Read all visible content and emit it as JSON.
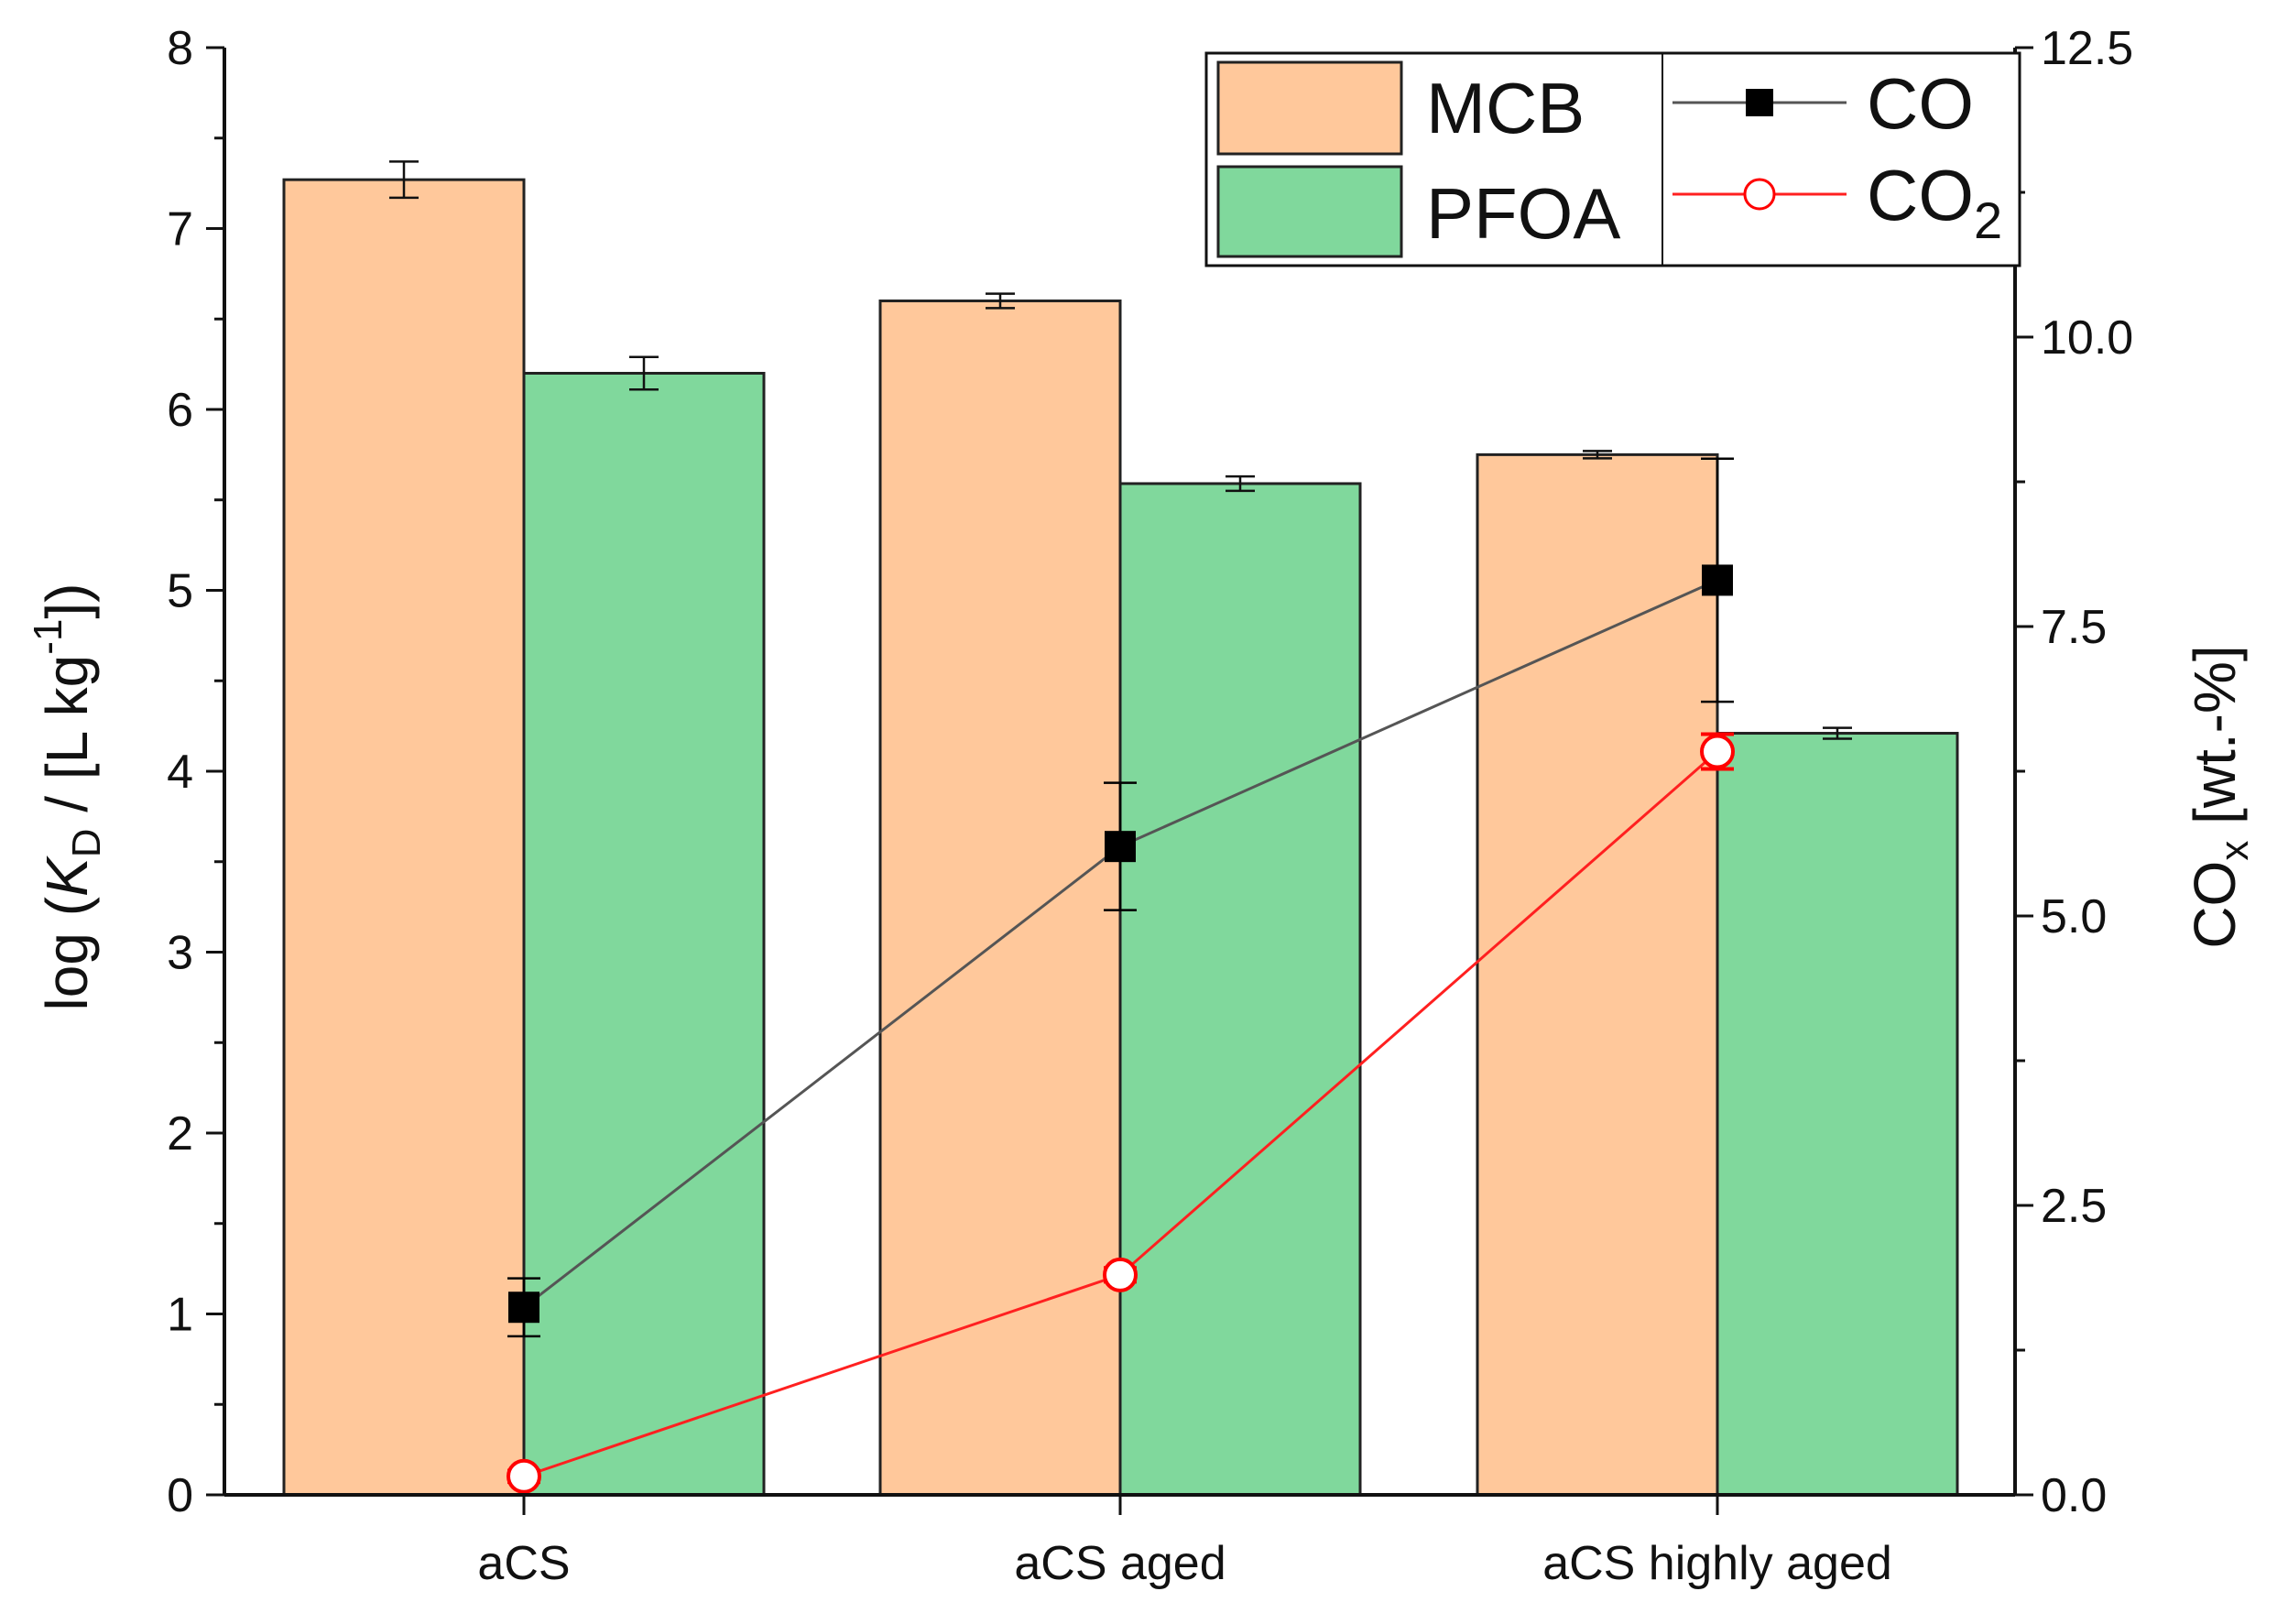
{
  "chart_data": {
    "type": "bar",
    "title": "",
    "categories": [
      "aCS",
      "aCS aged",
      "aCS highly aged"
    ],
    "ylabel": "log (K_D / [L kg^-1])",
    "ylabel_parts": {
      "prefix": "log (",
      "italic": "K",
      "sub": "D",
      "middle": " / [L kg",
      "sup": "-1",
      "suffix": "])"
    },
    "y2label": "CO_x [wt.-%]",
    "y2label_parts": {
      "main": "CO",
      "sub": "x",
      "suffix": " [wt.-%]"
    },
    "ylim": [
      0,
      8
    ],
    "y2lim": [
      0,
      12.5
    ],
    "yticks": [
      "0",
      "1",
      "2",
      "3",
      "4",
      "5",
      "6",
      "7",
      "8"
    ],
    "y2ticks": [
      "0.0",
      "2.5",
      "5.0",
      "7.5",
      "10.0",
      "12.5"
    ],
    "bar_series": [
      {
        "name": "MCB",
        "color": "#FFC89B",
        "values": [
          7.27,
          6.6,
          5.75
        ],
        "errors": [
          0.1,
          0.04,
          0.02
        ]
      },
      {
        "name": "PFOA",
        "color": "#80D89C",
        "values": [
          6.2,
          5.59,
          4.21
        ],
        "errors": [
          0.09,
          0.04,
          0.03
        ]
      }
    ],
    "line_series": [
      {
        "name": "CO",
        "color": "#000000",
        "line_color": "#555555",
        "marker": "square-filled",
        "axis": "right",
        "values": [
          1.62,
          5.6,
          7.9
        ],
        "errors": [
          0.25,
          0.55,
          1.05
        ]
      },
      {
        "name": "CO2",
        "label_main": "CO",
        "label_sub": "2",
        "color": "#FF0000",
        "line_color": "#FF2020",
        "marker": "circle-open",
        "axis": "right",
        "values": [
          0.16,
          1.9,
          6.42
        ],
        "errors": [
          0.05,
          0.06,
          0.15
        ]
      }
    ],
    "legend_position": "top-right"
  }
}
